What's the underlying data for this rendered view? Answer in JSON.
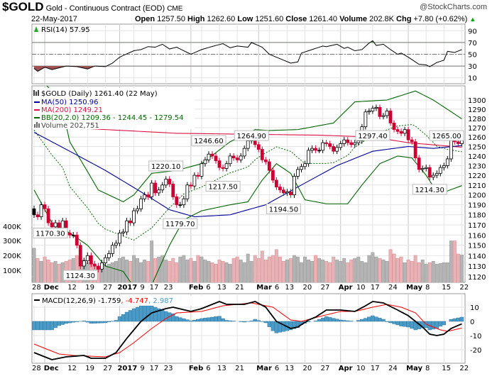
{
  "header": {
    "symbol": "$GOLD",
    "name": "Gold - Continuous Contract (EOD)",
    "exchange": "CME",
    "watermark": "@StockCharts.com",
    "date": "22-May-2017",
    "open_label": "Open",
    "open": "1257.50",
    "high_label": "High",
    "high": "1262.60",
    "low_label": "Low",
    "low": "1251.60",
    "close_label": "Close",
    "close": "1261.40",
    "volume_label": "Volume",
    "volume": "202.8K",
    "chg_label": "Chg",
    "chg": "+7.80 (+0.62%)",
    "chg_icon": "triangle-up-icon"
  },
  "colors": {
    "down": "#cc0033",
    "up": "#000000",
    "ma50": "#000099",
    "ma200": "#dd1144",
    "bb": "#006600",
    "vol_up": "#b4b4b4",
    "vol_down": "#e6b3b8",
    "macd_hist": "#4a9bc7",
    "macd": "#000000",
    "signal": "#ff0000"
  },
  "chart_data": [
    {
      "type": "line",
      "panel": "rsi",
      "legend": "RSI(14) 57.95",
      "yticks": [
        90,
        70,
        50,
        30,
        10
      ],
      "ylim": [
        0,
        100
      ],
      "reference_lines": [
        70,
        50,
        30
      ],
      "series": [
        {
          "name": "RSI(14)",
          "points": [
            [
              0,
              26
            ],
            [
              1,
              21
            ],
            [
              3,
              28
            ],
            [
              5,
              24
            ],
            [
              9,
              30
            ],
            [
              12,
              29
            ],
            [
              15,
              25
            ],
            [
              17,
              30
            ],
            [
              20,
              29
            ],
            [
              22,
              35
            ],
            [
              24,
              45
            ],
            [
              25,
              48
            ],
            [
              28,
              56
            ],
            [
              30,
              58
            ],
            [
              32,
              63
            ],
            [
              34,
              62
            ],
            [
              36,
              67
            ],
            [
              38,
              59
            ],
            [
              40,
              62
            ],
            [
              44,
              50
            ],
            [
              47,
              58
            ],
            [
              51,
              65
            ],
            [
              53,
              68
            ],
            [
              55,
              61
            ],
            [
              57,
              64
            ],
            [
              60,
              62
            ],
            [
              61,
              70
            ],
            [
              64,
              62
            ],
            [
              66,
              50
            ],
            [
              70,
              40
            ],
            [
              72,
              35
            ],
            [
              74,
              37
            ],
            [
              75,
              52
            ],
            [
              78,
              58
            ],
            [
              81,
              64
            ],
            [
              82,
              63
            ],
            [
              85,
              67
            ],
            [
              87,
              60
            ],
            [
              88,
              62
            ],
            [
              90,
              56
            ],
            [
              92,
              58
            ],
            [
              94,
              69
            ],
            [
              95,
              73
            ],
            [
              96,
              65
            ],
            [
              98,
              67
            ],
            [
              100,
              58
            ],
            [
              102,
              50
            ],
            [
              103,
              52
            ],
            [
              105,
              45
            ],
            [
              108,
              33
            ],
            [
              110,
              32
            ],
            [
              111,
              29
            ],
            [
              113,
              36
            ],
            [
              115,
              40
            ],
            [
              116,
              55
            ],
            [
              118,
              53
            ],
            [
              120,
              57.95
            ]
          ]
        }
      ]
    },
    {
      "type": "candlestick",
      "panel": "price",
      "scale": "log",
      "legend_title": "$GOLD (Daily) 1261.40 (22 May)",
      "legend_ma50": "MA(50) 1250.96",
      "legend_ma200": "MA(200) 1249.21",
      "legend_bb": "BB(20,2.0) 1209.36 - 1244.45 - 1279.54",
      "legend_volume": "Volume 202,751",
      "ylim": [
        1115,
        1310
      ],
      "yticks": [
        1300,
        1290,
        1280,
        1270,
        1260,
        1250,
        1240,
        1230,
        1220,
        1210,
        1200,
        1190,
        1180,
        1170,
        1160,
        1150,
        1140,
        1130,
        1120
      ],
      "volume_ticks": [
        "400K",
        "300K",
        "200K",
        "100K"
      ],
      "x_tick_labels": [
        {
          "i": 0,
          "label": "28",
          "bold": false
        },
        {
          "i": 3,
          "label": "Dec",
          "bold": true
        },
        {
          "i": 10,
          "label": "12",
          "bold": false
        },
        {
          "i": 15,
          "label": "19",
          "bold": false
        },
        {
          "i": 20,
          "label": "27",
          "bold": false
        },
        {
          "i": 24,
          "label": "2017",
          "bold": true
        },
        {
          "i": 28,
          "label": "9",
          "bold": false
        },
        {
          "i": 33,
          "label": "17",
          "bold": false
        },
        {
          "i": 37,
          "label": "23",
          "bold": false
        },
        {
          "i": 44,
          "label": "Feb",
          "bold": true
        },
        {
          "i": 47,
          "label": "6",
          "bold": false
        },
        {
          "i": 52,
          "label": "13",
          "bold": false
        },
        {
          "i": 57,
          "label": "21",
          "bold": false
        },
        {
          "i": 63,
          "label": "Mar",
          "bold": true
        },
        {
          "i": 66,
          "label": "6",
          "bold": false
        },
        {
          "i": 71,
          "label": "13",
          "bold": false
        },
        {
          "i": 76,
          "label": "20",
          "bold": false
        },
        {
          "i": 81,
          "label": "27",
          "bold": false
        },
        {
          "i": 86,
          "label": "Apr",
          "bold": true
        },
        {
          "i": 91,
          "label": "10",
          "bold": false
        },
        {
          "i": 95,
          "label": "17",
          "bold": false
        },
        {
          "i": 100,
          "label": "24",
          "bold": false
        },
        {
          "i": 105,
          "label": "May",
          "bold": true
        },
        {
          "i": 110,
          "label": "8",
          "bold": false
        },
        {
          "i": 115,
          "label": "15",
          "bold": false
        },
        {
          "i": 120,
          "label": "22",
          "bold": false
        }
      ],
      "close": [
        1180,
        1178,
        1190,
        1186,
        1172,
        1168,
        1172,
        1166,
        1174,
        1162,
        1160,
        1160,
        1150,
        1130,
        1135,
        1140,
        1132,
        1130,
        1127,
        1133,
        1138,
        1142,
        1150,
        1152,
        1162,
        1163,
        1174,
        1172,
        1184,
        1186,
        1196,
        1200,
        1198,
        1212,
        1202,
        1205,
        1210,
        1216,
        1211,
        1198,
        1190,
        1190,
        1196,
        1210,
        1209,
        1220,
        1219,
        1232,
        1236,
        1242,
        1240,
        1235,
        1228,
        1227,
        1232,
        1240,
        1238,
        1236,
        1240,
        1248,
        1256,
        1258,
        1252,
        1247,
        1236,
        1234,
        1225,
        1215,
        1208,
        1205,
        1202,
        1203,
        1200,
        1219,
        1226,
        1229,
        1232,
        1246,
        1248,
        1246,
        1246,
        1254,
        1253,
        1250,
        1245,
        1249,
        1253,
        1257,
        1254,
        1252,
        1254,
        1256,
        1271,
        1287,
        1288,
        1291,
        1292,
        1282,
        1283,
        1288,
        1275,
        1268,
        1266,
        1264,
        1268,
        1257,
        1255,
        1238,
        1226,
        1227,
        1228,
        1218,
        1220,
        1222,
        1228,
        1230,
        1237,
        1258,
        1255,
        1253,
        1261.4
      ],
      "volume_k": [
        250,
        180,
        160,
        190,
        170,
        150,
        160,
        140,
        150,
        160,
        170,
        180,
        200,
        190,
        170,
        150,
        160,
        130,
        120,
        110,
        130,
        140,
        150,
        160,
        180,
        190,
        170,
        160,
        200,
        180,
        150,
        170,
        160,
        300,
        180,
        190,
        200,
        170,
        160,
        180,
        150,
        190,
        200,
        170,
        180,
        160,
        200,
        190,
        170,
        160,
        150,
        140,
        170,
        160,
        150,
        140,
        180,
        190,
        170,
        150,
        210,
        160,
        200,
        180,
        230,
        170,
        190,
        200,
        240,
        190,
        160,
        170,
        180,
        200,
        190,
        150,
        190,
        170,
        160,
        200,
        180,
        170,
        160,
        150,
        190,
        170,
        160,
        180,
        150,
        170,
        180,
        190,
        160,
        150,
        200,
        220,
        190,
        180,
        170,
        160,
        240,
        210,
        180,
        190,
        150,
        170,
        160,
        200,
        150,
        170,
        140,
        150,
        160,
        140,
        145,
        150,
        150,
        300,
        300,
        210,
        202.8
      ],
      "ma50": [
        [
          0,
          1265
        ],
        [
          10,
          1245
        ],
        [
          20,
          1225
        ],
        [
          30,
          1203
        ],
        [
          38,
          1185
        ],
        [
          45,
          1178
        ],
        [
          55,
          1180
        ],
        [
          65,
          1190
        ],
        [
          75,
          1210
        ],
        [
          85,
          1230
        ],
        [
          95,
          1245
        ],
        [
          105,
          1250
        ],
        [
          112,
          1248
        ],
        [
          120,
          1250.96
        ]
      ],
      "ma200": [
        [
          0,
          1272
        ],
        [
          20,
          1268
        ],
        [
          40,
          1264
        ],
        [
          60,
          1263
        ],
        [
          80,
          1262
        ],
        [
          95,
          1260
        ],
        [
          105,
          1254
        ],
        [
          120,
          1249.21
        ]
      ],
      "bb_upper": [
        [
          0,
          1330
        ],
        [
          5,
          1310
        ],
        [
          8,
          1290
        ],
        [
          10,
          1255
        ],
        [
          18,
          1205
        ],
        [
          25,
          1193
        ],
        [
          28,
          1200
        ],
        [
          33,
          1222
        ],
        [
          40,
          1225
        ],
        [
          47,
          1232
        ],
        [
          55,
          1255
        ],
        [
          62,
          1268
        ],
        [
          66,
          1267
        ],
        [
          74,
          1268
        ],
        [
          84,
          1275
        ],
        [
          90,
          1298
        ],
        [
          99,
          1300
        ],
        [
          107,
          1310
        ],
        [
          112,
          1300
        ],
        [
          120,
          1279.54
        ]
      ],
      "bb_lower": [
        [
          0,
          1205
        ],
        [
          5,
          1172
        ],
        [
          10,
          1162
        ],
        [
          15,
          1150
        ],
        [
          20,
          1130
        ],
        [
          25,
          1125
        ],
        [
          28,
          1110
        ],
        [
          33,
          1112
        ],
        [
          38,
          1150
        ],
        [
          42,
          1175
        ],
        [
          47,
          1184
        ],
        [
          55,
          1190
        ],
        [
          60,
          1193
        ],
        [
          64,
          1215
        ],
        [
          68,
          1232
        ],
        [
          72,
          1222
        ],
        [
          76,
          1195
        ],
        [
          82,
          1191
        ],
        [
          88,
          1191
        ],
        [
          92,
          1210
        ],
        [
          97,
          1232
        ],
        [
          102,
          1240
        ],
        [
          106,
          1238
        ],
        [
          110,
          1220
        ],
        [
          113,
          1203
        ],
        [
          116,
          1204
        ],
        [
          120,
          1209.36
        ]
      ],
      "annotations": [
        {
          "i": 0,
          "text": "1170.30",
          "pos": "below",
          "value": 1170.3
        },
        {
          "i": 13,
          "text": "1124.30",
          "pos": "below",
          "value": 1124.3
        },
        {
          "i": 37,
          "text": "1220.10",
          "pos": "above",
          "value": 1220.1
        },
        {
          "i": 41,
          "text": "1179.70",
          "pos": "below",
          "value": 1179.7
        },
        {
          "i": 49,
          "text": "1246.60",
          "pos": "above",
          "value": 1246.6
        },
        {
          "i": 53,
          "text": "1217.50",
          "pos": "below",
          "value": 1217.5
        },
        {
          "i": 61,
          "text": "1264.90",
          "pos": "above",
          "value": 1264.9
        },
        {
          "i": 70,
          "text": "1194.50",
          "pos": "below",
          "value": 1194.5
        },
        {
          "i": 95,
          "text": "1297.40",
          "pos": "above",
          "value": 1297.4
        },
        {
          "i": 111,
          "text": "1214.30",
          "pos": "below",
          "value": 1214.3
        },
        {
          "i": 118,
          "text": "1265.00",
          "pos": "above",
          "value": 1265.0
        }
      ]
    },
    {
      "type": "line",
      "panel": "macd",
      "legend_name": "MACD(12,26,9)",
      "legend_macd": "-1.759",
      "legend_signal": ", -4.747",
      "legend_hist": ", 2.987",
      "yticks": [
        10,
        0,
        -10,
        -20
      ],
      "ylim": [
        -29,
        18
      ],
      "macd": [
        [
          0,
          -22
        ],
        [
          3,
          -25
        ],
        [
          5,
          -27
        ],
        [
          9,
          -25
        ],
        [
          14,
          -24
        ],
        [
          16,
          -26
        ],
        [
          20,
          -26
        ],
        [
          23,
          -22
        ],
        [
          26,
          -12
        ],
        [
          30,
          0
        ],
        [
          33,
          6
        ],
        [
          37,
          9
        ],
        [
          39,
          10
        ],
        [
          44,
          7
        ],
        [
          47,
          9
        ],
        [
          52,
          14
        ],
        [
          54,
          12
        ],
        [
          59,
          12
        ],
        [
          62,
          14
        ],
        [
          65,
          10
        ],
        [
          68,
          0
        ],
        [
          72,
          -5
        ],
        [
          74,
          -4
        ],
        [
          77,
          1
        ],
        [
          79,
          3
        ],
        [
          82,
          8
        ],
        [
          86,
          8
        ],
        [
          90,
          7
        ],
        [
          93,
          11
        ],
        [
          95,
          14
        ],
        [
          98,
          13
        ],
        [
          102,
          8
        ],
        [
          105,
          4
        ],
        [
          109,
          -4
        ],
        [
          111,
          -9
        ],
        [
          113,
          -10
        ],
        [
          115,
          -9
        ],
        [
          117,
          -5
        ],
        [
          120,
          -1.759
        ]
      ],
      "signal": [
        [
          0,
          -16
        ],
        [
          4,
          -20
        ],
        [
          7,
          -23
        ],
        [
          11,
          -24
        ],
        [
          20,
          -25
        ],
        [
          24,
          -22
        ],
        [
          28,
          -15
        ],
        [
          33,
          -5
        ],
        [
          37,
          2
        ],
        [
          40,
          6
        ],
        [
          47,
          7
        ],
        [
          53,
          11
        ],
        [
          61,
          13
        ],
        [
          67,
          10
        ],
        [
          72,
          1
        ],
        [
          75,
          0
        ],
        [
          81,
          4
        ],
        [
          86,
          7
        ],
        [
          90,
          7
        ],
        [
          95,
          10
        ],
        [
          99,
          12
        ],
        [
          103,
          10
        ],
        [
          107,
          6
        ],
        [
          110,
          -2
        ],
        [
          114,
          -6
        ],
        [
          116,
          -7
        ],
        [
          120,
          -4.747
        ]
      ]
    }
  ]
}
